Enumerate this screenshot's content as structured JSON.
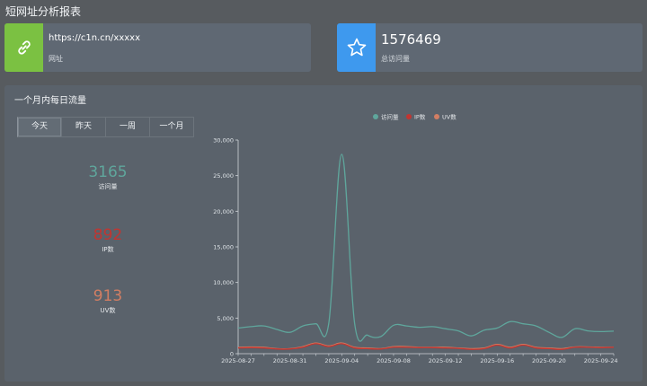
{
  "page": {
    "title": "短网址分析报表"
  },
  "cards": [
    {
      "main": "https://c1n.cn/xxxxx",
      "sub": "网址",
      "icon": "link-icon",
      "color": "#7bc142"
    },
    {
      "main": "1576469",
      "sub": "总访问量",
      "icon": "star-icon",
      "color": "#3e99ee"
    }
  ],
  "panel": {
    "title": "一个月内每日流量",
    "tabs": [
      "今天",
      "昨天",
      "一周",
      "一个月"
    ],
    "active_tab": 0
  },
  "stats": [
    {
      "value": "3165",
      "label": "访问量",
      "color": "#5fa69c"
    },
    {
      "value": "892",
      "label": "IP数",
      "color": "#c23531"
    },
    {
      "value": "913",
      "label": "UV数",
      "color": "#d27e63"
    }
  ],
  "chart_data": {
    "type": "line",
    "legend": [
      "访问量",
      "IP数",
      "UV数"
    ],
    "legend_position": "top-center",
    "colors": [
      "#5fa69c",
      "#c23531",
      "#d27e63"
    ],
    "ylim": [
      0,
      30000
    ],
    "yticks": [
      0,
      5000,
      10000,
      15000,
      20000,
      25000,
      30000
    ],
    "ytick_labels": [
      "0",
      "5,000",
      "10,000",
      "15,000",
      "20,000",
      "25,000",
      "30,000"
    ],
    "xtick_labels": [
      "2025-08-27",
      "2025-08-31",
      "2025-09-04",
      "2025-09-08",
      "2025-09-12",
      "2025-09-16",
      "2025-09-20",
      "2025-09-24"
    ],
    "x": [
      "2025-08-27",
      "2025-08-28",
      "2025-08-29",
      "2025-08-30",
      "2025-08-31",
      "2025-09-01",
      "2025-09-02",
      "2025-09-03",
      "2025-09-04",
      "2025-09-05",
      "2025-09-06",
      "2025-09-07",
      "2025-09-08",
      "2025-09-09",
      "2025-09-10",
      "2025-09-11",
      "2025-09-12",
      "2025-09-13",
      "2025-09-14",
      "2025-09-15",
      "2025-09-16",
      "2025-09-17",
      "2025-09-18",
      "2025-09-19",
      "2025-09-20",
      "2025-09-21",
      "2025-09-22",
      "2025-09-23",
      "2025-09-24",
      "2025-09-25"
    ],
    "series": [
      {
        "name": "访问量",
        "values": [
          3600,
          3800,
          3900,
          3400,
          3000,
          3900,
          4200,
          4300,
          28000,
          4200,
          2600,
          2400,
          4000,
          3900,
          3700,
          3800,
          3500,
          3200,
          2500,
          3300,
          3600,
          4500,
          4200,
          3900,
          3000,
          2300,
          3500,
          3200,
          3100,
          3165
        ]
      },
      {
        "name": "IP数",
        "values": [
          800,
          850,
          800,
          650,
          650,
          900,
          1400,
          1000,
          1400,
          800,
          700,
          650,
          900,
          900,
          850,
          850,
          800,
          750,
          600,
          700,
          1200,
          800,
          1200,
          800,
          700,
          600,
          900,
          900,
          850,
          892
        ]
      },
      {
        "name": "UV数",
        "values": [
          900,
          950,
          900,
          700,
          700,
          1000,
          1500,
          1100,
          1500,
          900,
          800,
          700,
          1000,
          1000,
          900,
          900,
          900,
          800,
          700,
          800,
          1300,
          900,
          1300,
          900,
          800,
          700,
          950,
          950,
          900,
          913
        ]
      }
    ]
  }
}
